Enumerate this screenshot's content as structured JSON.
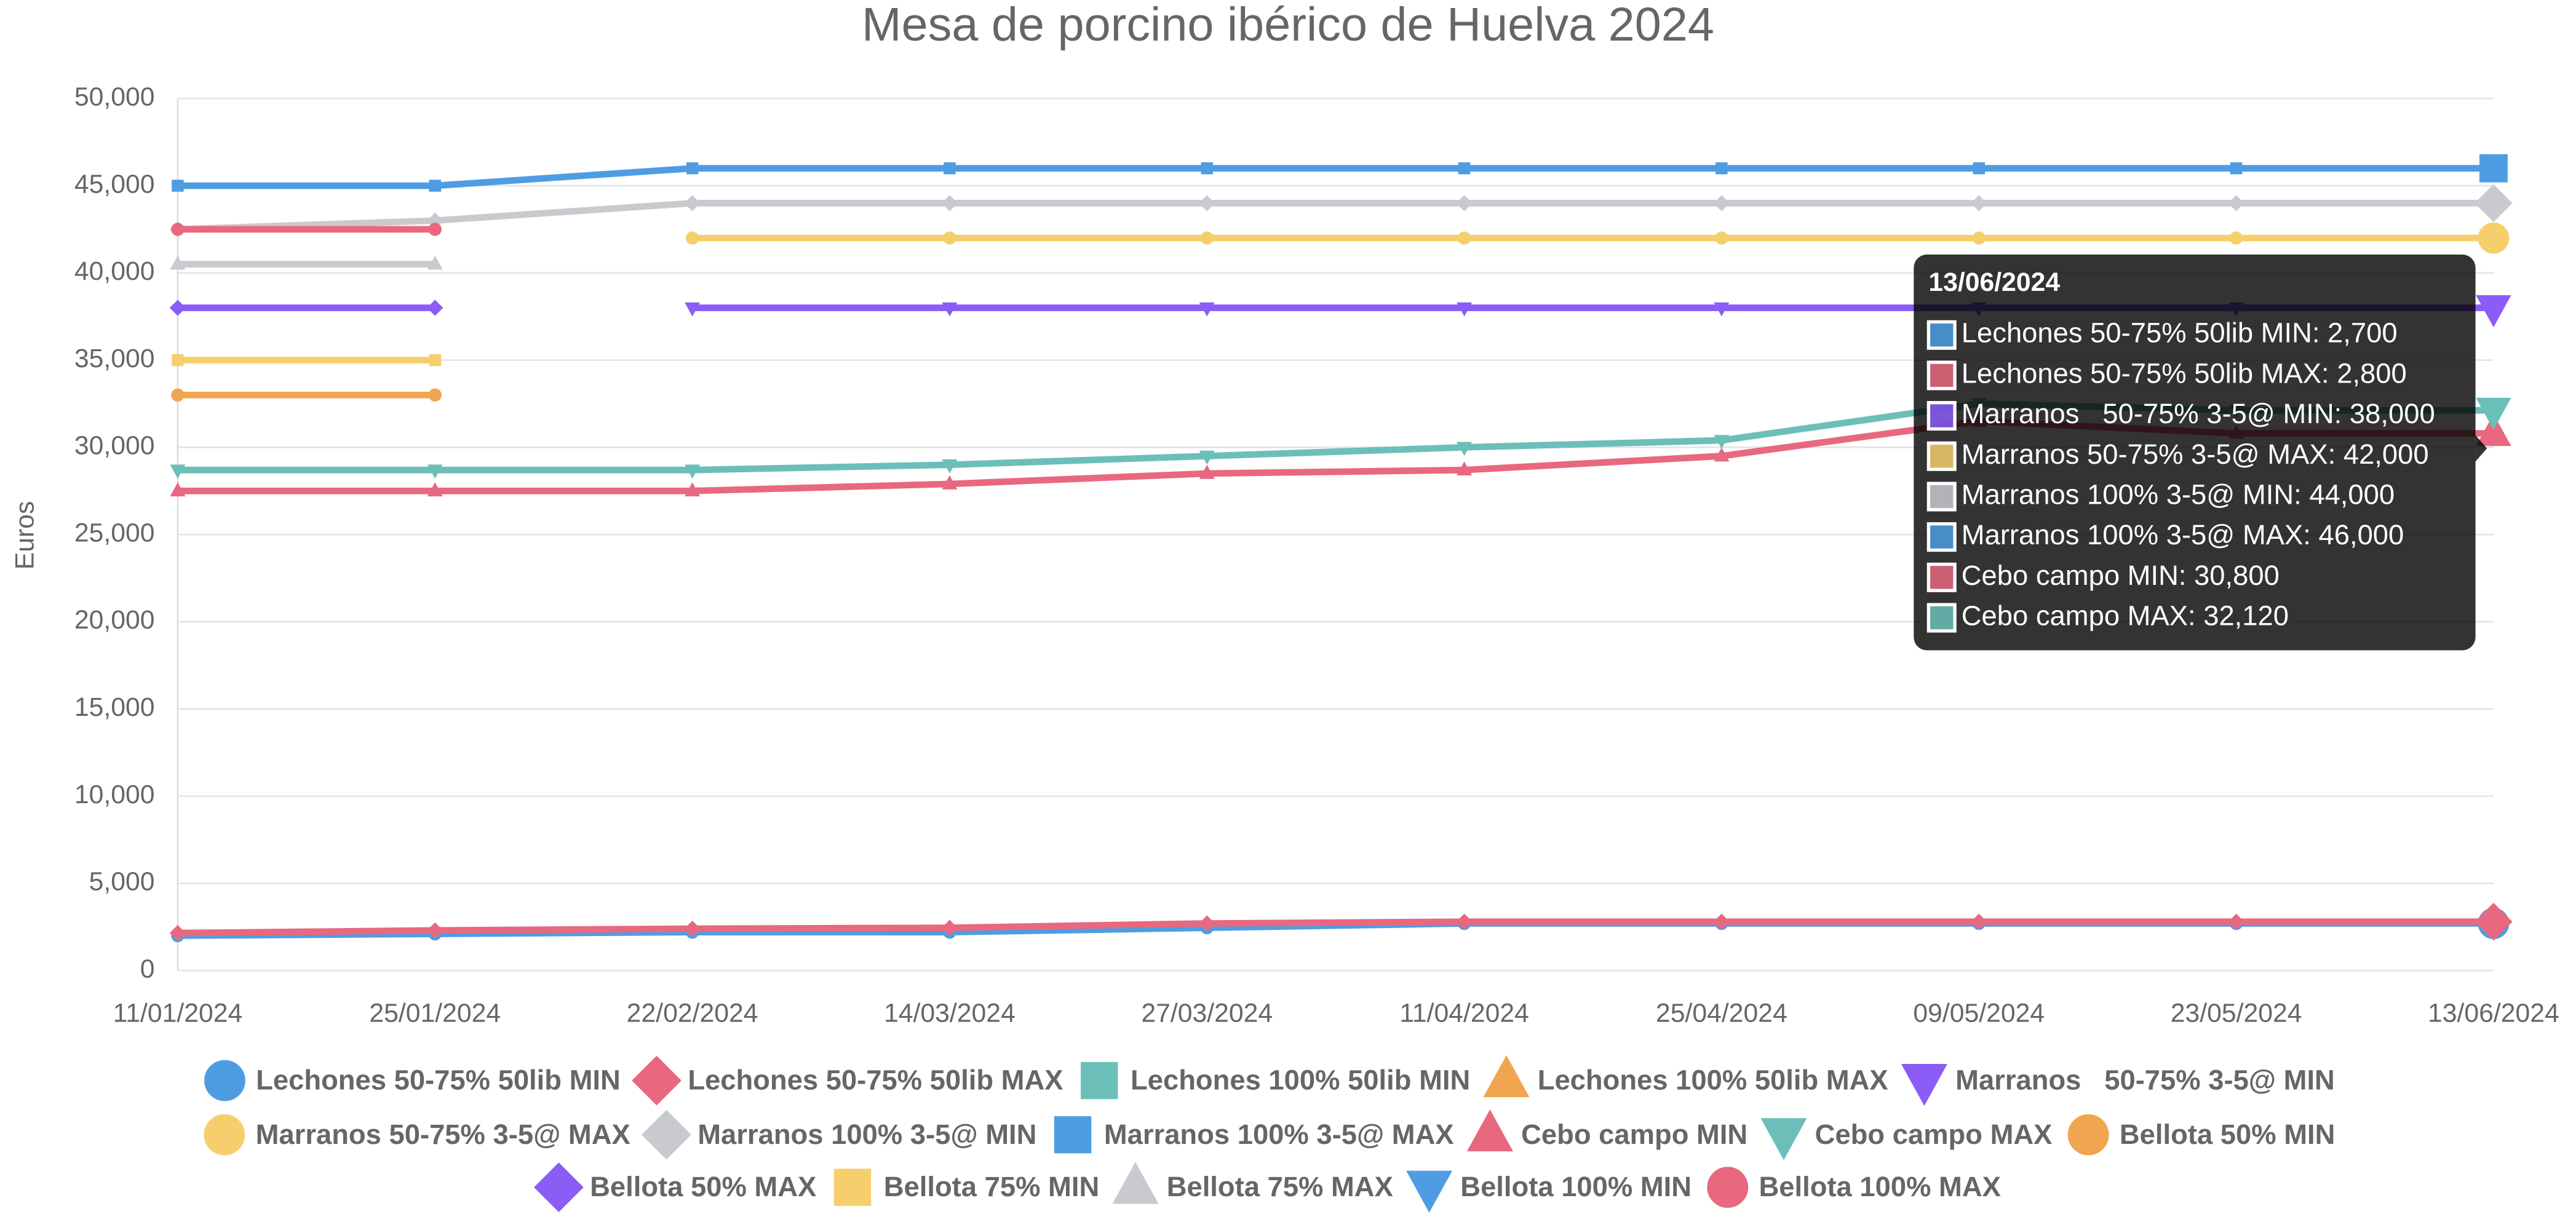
{
  "chart_data": {
    "type": "line",
    "title": "Mesa de porcino ibérico de Huelva 2024",
    "y_label": "Euros",
    "categories": [
      "11/01/2024",
      "25/01/2024",
      "22/02/2024",
      "14/03/2024",
      "27/03/2024",
      "11/04/2024",
      "25/04/2024",
      "09/05/2024",
      "23/05/2024",
      "13/06/2024"
    ],
    "ylim": [
      0,
      50000
    ],
    "yticks": [
      0,
      {
        "value": 5000,
        "label": "5,000"
      },
      {
        "value": 10000,
        "label": "10,000"
      },
      {
        "value": 15000,
        "label": "15,000"
      },
      {
        "value": 20000,
        "label": "20,000"
      },
      {
        "value": 25000,
        "label": "25,000"
      },
      {
        "value": 30000,
        "label": "30,000"
      },
      {
        "value": 35000,
        "label": "35,000"
      },
      {
        "value": 40000,
        "label": "40,000"
      },
      {
        "value": 45000,
        "label": "45,000"
      },
      {
        "value": 50000,
        "label": "50,000"
      }
    ],
    "grid": true,
    "legend": "bottom",
    "series": [
      {
        "name": "Lechones 50-75% 50lib MIN",
        "color": "#4e9de3",
        "marker": "circle",
        "values": [
          2000,
          2100,
          2200,
          2200,
          2450,
          2700,
          2700,
          2700,
          2700,
          2700
        ]
      },
      {
        "name": "Lechones 50-75% 50lib MAX",
        "color": "#e8687f",
        "marker": "diamond",
        "values": [
          2150,
          2300,
          2400,
          2450,
          2700,
          2800,
          2800,
          2800,
          2800,
          2800
        ]
      },
      {
        "name": "Lechones 100% 50lib MIN",
        "color": "#6cbfb8",
        "marker": "square",
        "values": [
          null,
          null,
          null,
          null,
          null,
          null,
          null,
          null,
          null,
          null
        ]
      },
      {
        "name": "Lechones 100% 50lib MAX",
        "color": "#f0a550",
        "marker": "triangle",
        "values": [
          null,
          null,
          null,
          null,
          null,
          null,
          null,
          null,
          null,
          null
        ]
      },
      {
        "name": "Marranos   50-75% 3-5@ MIN",
        "color": "#8b5cf6",
        "marker": "triangle-down",
        "values": [
          null,
          null,
          38000,
          38000,
          38000,
          38000,
          38000,
          38000,
          38000,
          38000
        ]
      },
      {
        "name": "Marranos 50-75% 3-5@ MAX",
        "color": "#f6cf6c",
        "marker": "circle",
        "values": [
          null,
          null,
          42000,
          42000,
          42000,
          42000,
          42000,
          42000,
          42000,
          42000
        ]
      },
      {
        "name": "Marranos 100% 3-5@ MIN",
        "color": "#c9cacf",
        "marker": "diamond",
        "values": [
          42500,
          43000,
          44000,
          44000,
          44000,
          44000,
          44000,
          44000,
          44000,
          44000
        ]
      },
      {
        "name": "Marranos 100% 3-5@ MAX",
        "color": "#4e9de3",
        "marker": "square",
        "values": [
          45000,
          45000,
          46000,
          46000,
          46000,
          46000,
          46000,
          46000,
          46000,
          46000
        ]
      },
      {
        "name": "Cebo campo MIN",
        "color": "#e8687f",
        "marker": "triangle",
        "values": [
          27500,
          27500,
          27500,
          27900,
          28500,
          28700,
          29500,
          31500,
          30800,
          30800
        ]
      },
      {
        "name": "Cebo campo MAX",
        "color": "#6cbfb8",
        "marker": "triangle-down",
        "values": [
          28700,
          28700,
          28700,
          29000,
          29500,
          30000,
          30400,
          32500,
          32120,
          32120
        ]
      },
      {
        "name": "Bellota 50% MIN",
        "color": "#f0a550",
        "marker": "circle",
        "values": [
          33000,
          33000,
          null,
          null,
          null,
          null,
          null,
          null,
          null,
          null
        ]
      },
      {
        "name": "Bellota 50% MAX",
        "color": "#8b5cf6",
        "marker": "diamond",
        "values": [
          38000,
          38000,
          null,
          null,
          null,
          null,
          null,
          null,
          null,
          null
        ]
      },
      {
        "name": "Bellota 75% MIN",
        "color": "#f6cf6c",
        "marker": "square",
        "values": [
          35000,
          35000,
          null,
          null,
          null,
          null,
          null,
          null,
          null,
          null
        ]
      },
      {
        "name": "Bellota 75% MAX",
        "color": "#c9cacf",
        "marker": "triangle",
        "values": [
          40500,
          40500,
          null,
          null,
          null,
          null,
          null,
          null,
          null,
          null
        ]
      },
      {
        "name": "Bellota 100% MIN",
        "color": "#4e9de3",
        "marker": "triangle-down",
        "values": [
          null,
          null,
          null,
          null,
          null,
          null,
          null,
          null,
          null,
          null
        ]
      },
      {
        "name": "Bellota 100% MAX",
        "color": "#e8687f",
        "marker": "circle",
        "values": [
          42500,
          42500,
          null,
          null,
          null,
          null,
          null,
          null,
          null,
          null
        ]
      }
    ],
    "tooltip": {
      "title": "13/06/2024",
      "items": [
        {
          "text": "Lechones 50-75% 50lib MIN: 2,700",
          "color": "#4e9de3"
        },
        {
          "text": "Lechones 50-75% 50lib MAX: 2,800",
          "color": "#e8687f"
        },
        {
          "text": "Marranos   50-75% 3-5@ MIN: 38,000",
          "color": "#8b5cf6"
        },
        {
          "text": "Marranos 50-75% 3-5@ MAX: 42,000",
          "color": "#f6cf6c"
        },
        {
          "text": "Marranos 100% 3-5@ MIN: 44,000",
          "color": "#c9cacf"
        },
        {
          "text": "Marranos 100% 3-5@ MAX: 46,000",
          "color": "#4e9de3"
        },
        {
          "text": "Cebo campo MIN: 30,800",
          "color": "#e8687f"
        },
        {
          "text": "Cebo campo MAX: 32,120",
          "color": "#6cbfb8"
        }
      ]
    }
  }
}
